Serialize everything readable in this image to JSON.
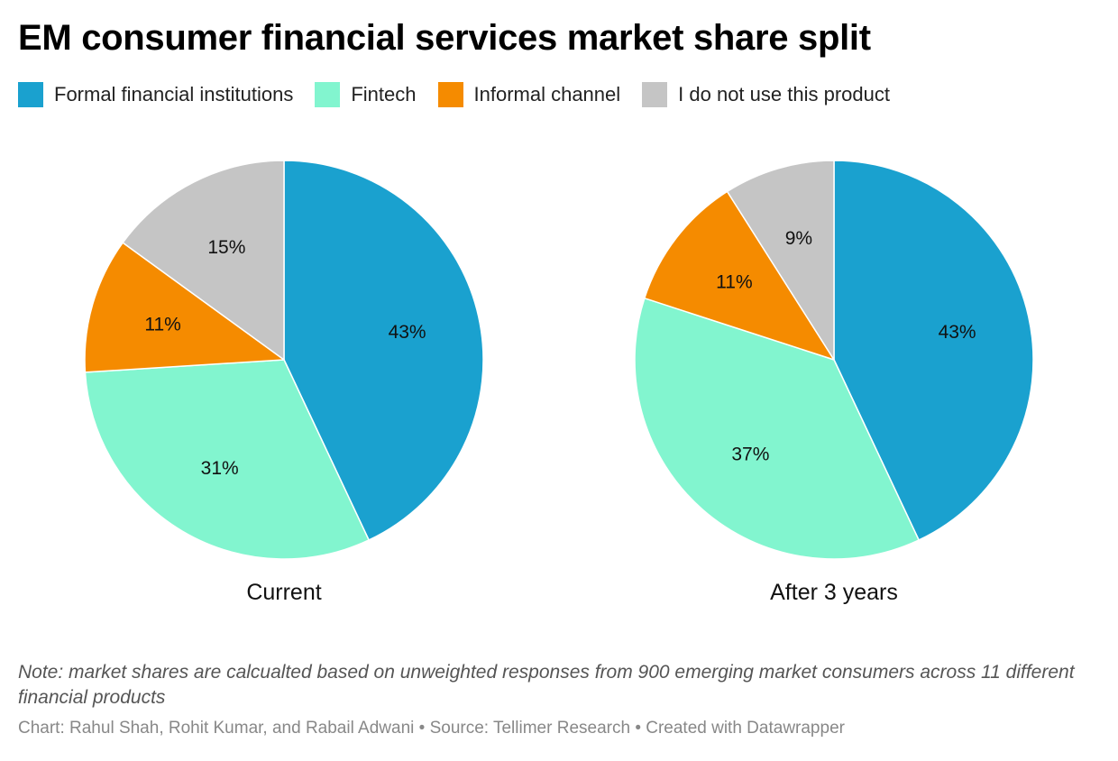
{
  "chart_data": {
    "type": "pie",
    "title": "EM consumer financial services market share split",
    "legend": {
      "placement": "top-left",
      "entries": [
        {
          "label": "Formal financial institutions",
          "color": "#1aa1cf"
        },
        {
          "label": "Fintech",
          "color": "#82f5cf"
        },
        {
          "label": "Informal channel",
          "color": "#f58b00"
        },
        {
          "label": "I do not use this product",
          "color": "#c5c5c5"
        }
      ]
    },
    "categories": [
      "Formal financial institutions",
      "Fintech",
      "Informal channel",
      "I do not use this product"
    ],
    "pies": [
      {
        "name": "Current",
        "values": [
          43,
          31,
          11,
          15
        ],
        "labels": [
          "43%",
          "31%",
          "11%",
          "15%"
        ]
      },
      {
        "name": "After 3 years",
        "values": [
          43,
          37,
          11,
          9
        ],
        "labels": [
          "43%",
          "37%",
          "11%",
          "9%"
        ]
      }
    ]
  },
  "note": "Note: market shares are calcualted based on unweighted responses from 900 emerging market consumers across 11 different financial products",
  "credit": "Chart: Rahul Shah, Rohit Kumar, and Rabail Adwani • Source: Tellimer Research • Created with Datawrapper"
}
